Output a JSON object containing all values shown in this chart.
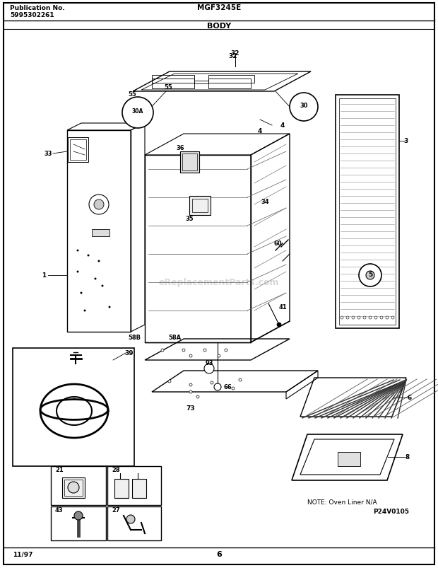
{
  "title_left_line1": "Publication No.",
  "title_left_line2": "5995302261",
  "title_center": "MGF3245E",
  "section_title": "BODY",
  "footer_left": "11/97",
  "footer_center": "6",
  "bg_color": "#ffffff",
  "border_color": "#000000",
  "watermark_text": "eReplacementParts.com",
  "note_text": "NOTE: Oven Liner N/A",
  "part_number": "P24V0105",
  "figsize": [
    6.2,
    8.04
  ],
  "dpi": 100
}
